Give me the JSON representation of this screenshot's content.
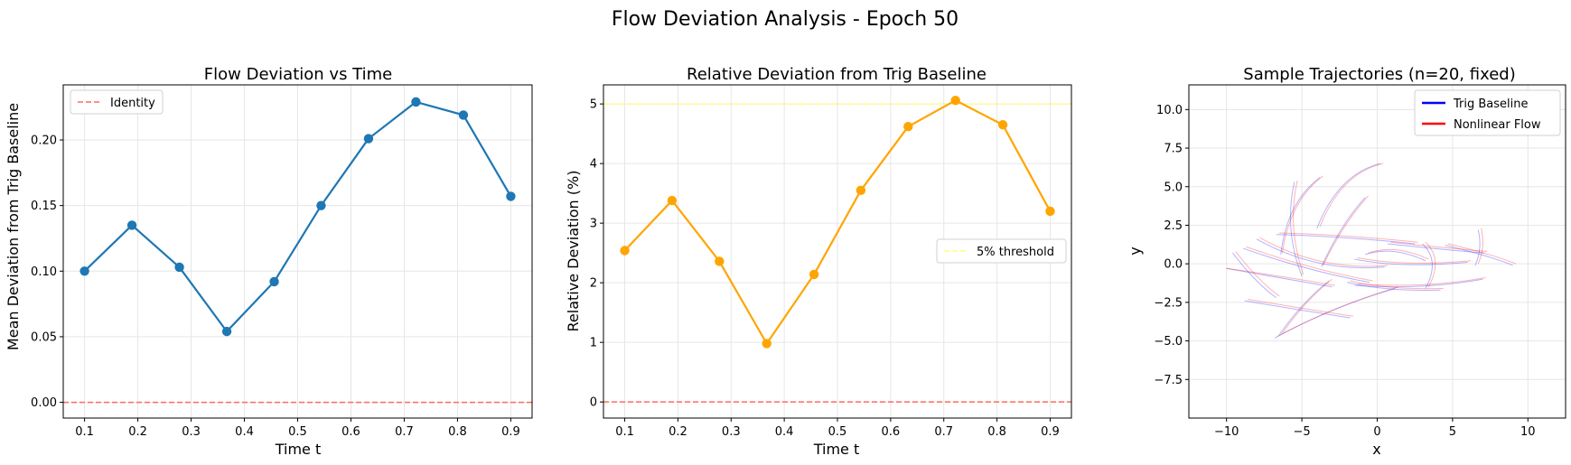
{
  "figure": {
    "suptitle": "Flow Deviation Analysis - Epoch 50"
  },
  "chart_data": [
    {
      "type": "line",
      "title": "Flow Deviation vs Time",
      "xlabel": "Time t",
      "ylabel": "Mean Deviation from Trig Baseline",
      "xlim": [
        0.06,
        0.94
      ],
      "ylim": [
        -0.012,
        0.242
      ],
      "xticks": [
        0.1,
        0.2,
        0.3,
        0.4,
        0.5,
        0.6,
        0.7,
        0.8,
        0.9
      ],
      "xticklabels": [
        "0.1",
        "0.2",
        "0.3",
        "0.4",
        "0.5",
        "0.6",
        "0.7",
        "0.8",
        "0.9"
      ],
      "yticks": [
        0.0,
        0.05,
        0.1,
        0.15,
        0.2
      ],
      "yticklabels": [
        "0.00",
        "0.05",
        "0.10",
        "0.15",
        "0.20"
      ],
      "grid": true,
      "x": [
        0.1,
        0.189,
        0.278,
        0.367,
        0.456,
        0.544,
        0.633,
        0.722,
        0.811,
        0.9
      ],
      "series": [
        {
          "name": "",
          "color": "#1f77b4",
          "values": [
            0.1,
            0.135,
            0.103,
            0.054,
            0.092,
            0.15,
            0.201,
            0.229,
            0.219,
            0.157
          ]
        }
      ],
      "hlines": [
        {
          "y": 0.0,
          "color": "#ff6b5c",
          "style": "dashed",
          "label": "Identity"
        }
      ],
      "legend": {
        "position": "top-left",
        "entries": [
          "Identity"
        ]
      }
    },
    {
      "type": "line",
      "title": "Relative Deviation from Trig Baseline",
      "xlabel": "Time t",
      "ylabel": "Relative Deviation (%)",
      "xlim": [
        0.06,
        0.94
      ],
      "ylim": [
        -0.27,
        5.32
      ],
      "xticks": [
        0.1,
        0.2,
        0.3,
        0.4,
        0.5,
        0.6,
        0.7,
        0.8,
        0.9
      ],
      "xticklabels": [
        "0.1",
        "0.2",
        "0.3",
        "0.4",
        "0.5",
        "0.6",
        "0.7",
        "0.8",
        "0.9"
      ],
      "yticks": [
        0,
        1,
        2,
        3,
        4,
        5
      ],
      "yticklabels": [
        "0",
        "1",
        "2",
        "3",
        "4",
        "5"
      ],
      "grid": true,
      "x": [
        0.1,
        0.189,
        0.278,
        0.367,
        0.456,
        0.544,
        0.633,
        0.722,
        0.811,
        0.9
      ],
      "series": [
        {
          "name": "",
          "color": "#ffa500",
          "values": [
            2.54,
            3.38,
            2.36,
            0.98,
            2.14,
            3.55,
            4.62,
            5.06,
            4.65,
            3.2
          ]
        }
      ],
      "hlines": [
        {
          "y": 5.0,
          "color": "#ffff77",
          "style": "dashed",
          "label": "5% threshold"
        },
        {
          "y": 0.0,
          "color": "#ff6b5c",
          "style": "dashed",
          "label": ""
        }
      ],
      "legend": {
        "position": "center-right",
        "entries": [
          "5% threshold"
        ]
      }
    },
    {
      "type": "line",
      "title": "Sample Trajectories (n=20, fixed)",
      "xlabel": "x",
      "ylabel": "y",
      "xlim": [
        -12.5,
        12.5
      ],
      "ylim": [
        -10.0,
        11.6
      ],
      "xticks": [
        -10,
        -5,
        0,
        5,
        10
      ],
      "xticklabels": [
        "−10",
        "−5",
        "0",
        "5",
        "10"
      ],
      "yticks": [
        -7.5,
        -5.0,
        -2.5,
        0.0,
        2.5,
        5.0,
        7.5,
        10.0
      ],
      "yticklabels": [
        "−7.5",
        "−5.0",
        "−2.5",
        "0.0",
        "2.5",
        "5.0",
        "7.5",
        "10.0"
      ],
      "grid": true,
      "legend": {
        "position": "top-right",
        "entries": [
          {
            "label": "Trig Baseline",
            "color": "#0000ff"
          },
          {
            "label": "Nonlinear Flow",
            "color": "#ff0000"
          }
        ]
      },
      "series": [
        {
          "name": "Trig Baseline",
          "color": "#0000ff",
          "trajectories": [
            [
              [
                -10.0,
                -0.3
              ],
              [
                -6.5,
                -0.9
              ],
              [
                -3.0,
                -1.5
              ]
            ],
            [
              [
                -5.5,
                5.3
              ],
              [
                -6.2,
                2.2
              ],
              [
                -5.0,
                -0.8
              ]
            ],
            [
              [
                -3.8,
                5.6
              ],
              [
                -6.0,
                4.0
              ],
              [
                -6.4,
                0.6
              ]
            ],
            [
              [
                -0.8,
                4.3
              ],
              [
                -2.4,
                2.6
              ],
              [
                -3.7,
                -0.2
              ]
            ],
            [
              [
                0.2,
                6.5
              ],
              [
                -2.6,
                5.8
              ],
              [
                -4.0,
                2.3
              ]
            ],
            [
              [
                -8.0,
                1.6
              ],
              [
                -4.0,
                -0.6
              ],
              [
                0.5,
                -0.2
              ]
            ],
            [
              [
                -6.7,
                1.9
              ],
              [
                -2.5,
                1.8
              ],
              [
                2.5,
                1.3
              ]
            ],
            [
              [
                -8.9,
                1.0
              ],
              [
                -4.5,
                -0.5
              ],
              [
                -0.5,
                -1.2
              ]
            ],
            [
              [
                -9.6,
                0.7
              ],
              [
                -8.0,
                -1.3
              ],
              [
                -6.7,
                -2.2
              ]
            ],
            [
              [
                -6.5,
                -4.6
              ],
              [
                -5.0,
                -2.5
              ],
              [
                -3.2,
                -1.1
              ]
            ],
            [
              [
                -6.8,
                -4.8
              ],
              [
                -3.0,
                -2.8
              ],
              [
                1.2,
                -1.6
              ]
            ],
            [
              [
                -8.8,
                -2.4
              ],
              [
                -4.5,
                -3.1
              ],
              [
                -1.8,
                -3.5
              ]
            ],
            [
              [
                -2.0,
                -1.2
              ],
              [
                0.5,
                -1.8
              ],
              [
                4.2,
                -1.7
              ]
            ],
            [
              [
                -1.5,
                0.3
              ],
              [
                1.5,
                -0.3
              ],
              [
                6.0,
                0.1
              ]
            ],
            [
              [
                6.7,
                2.2
              ],
              [
                7.0,
                1.0
              ],
              [
                6.5,
                -0.1
              ]
            ],
            [
              [
                3.0,
                1.3
              ],
              [
                4.2,
                0.2
              ],
              [
                3.2,
                -1.6
              ]
            ],
            [
              [
                7.0,
                -1.0
              ],
              [
                3.0,
                -1.7
              ],
              [
                -1.5,
                -1.4
              ]
            ],
            [
              [
                0.7,
                1.3
              ],
              [
                3.5,
                1.0
              ],
              [
                7.1,
                0.7
              ]
            ],
            [
              [
                4.5,
                1.2
              ],
              [
                7.5,
                0.5
              ],
              [
                9.0,
                -0.1
              ]
            ],
            [
              [
                -0.8,
                0.6
              ],
              [
                1.0,
                1.2
              ],
              [
                3.2,
                0.2
              ]
            ]
          ]
        },
        {
          "name": "Nonlinear Flow",
          "color": "#ff0000",
          "trajectories": [
            [
              [
                -10.0,
                -0.3
              ],
              [
                -6.3,
                -0.8
              ],
              [
                -2.8,
                -1.4
              ]
            ],
            [
              [
                -5.3,
                5.4
              ],
              [
                -6.0,
                2.4
              ],
              [
                -4.9,
                -0.7
              ]
            ],
            [
              [
                -3.6,
                5.7
              ],
              [
                -5.8,
                4.1
              ],
              [
                -6.3,
                0.7
              ]
            ],
            [
              [
                -0.6,
                4.4
              ],
              [
                -2.2,
                2.7
              ],
              [
                -3.6,
                -0.1
              ]
            ],
            [
              [
                0.4,
                6.5
              ],
              [
                -2.4,
                5.9
              ],
              [
                -3.8,
                2.4
              ]
            ],
            [
              [
                -7.8,
                1.7
              ],
              [
                -3.8,
                -0.5
              ],
              [
                0.7,
                -0.1
              ]
            ],
            [
              [
                -6.5,
                2.0
              ],
              [
                -2.3,
                1.9
              ],
              [
                2.7,
                1.4
              ]
            ],
            [
              [
                -8.7,
                1.1
              ],
              [
                -4.3,
                -0.4
              ],
              [
                -0.3,
                -1.1
              ]
            ],
            [
              [
                -9.4,
                0.8
              ],
              [
                -7.8,
                -1.2
              ],
              [
                -6.5,
                -2.1
              ]
            ],
            [
              [
                -6.3,
                -4.5
              ],
              [
                -4.8,
                -2.4
              ],
              [
                -3.0,
                -1.0
              ]
            ],
            [
              [
                -6.6,
                -4.7
              ],
              [
                -2.8,
                -2.7
              ],
              [
                1.4,
                -1.5
              ]
            ],
            [
              [
                -8.6,
                -2.3
              ],
              [
                -4.3,
                -3.0
              ],
              [
                -1.6,
                -3.4
              ]
            ],
            [
              [
                -1.8,
                -1.1
              ],
              [
                0.7,
                -1.7
              ],
              [
                4.4,
                -1.6
              ]
            ],
            [
              [
                -1.3,
                0.4
              ],
              [
                1.7,
                -0.2
              ],
              [
                6.2,
                0.2
              ]
            ],
            [
              [
                6.9,
                2.3
              ],
              [
                7.2,
                1.1
              ],
              [
                6.7,
                0.0
              ]
            ],
            [
              [
                3.2,
                1.4
              ],
              [
                4.4,
                0.3
              ],
              [
                3.4,
                -1.5
              ]
            ],
            [
              [
                7.2,
                -0.9
              ],
              [
                3.2,
                -1.6
              ],
              [
                -1.3,
                -1.3
              ]
            ],
            [
              [
                0.9,
                1.4
              ],
              [
                3.7,
                1.1
              ],
              [
                7.3,
                0.8
              ]
            ],
            [
              [
                4.7,
                1.3
              ],
              [
                7.7,
                0.6
              ],
              [
                9.2,
                0.0
              ]
            ],
            [
              [
                -0.6,
                0.7
              ],
              [
                1.2,
                1.3
              ],
              [
                3.4,
                0.3
              ]
            ]
          ]
        }
      ]
    }
  ]
}
